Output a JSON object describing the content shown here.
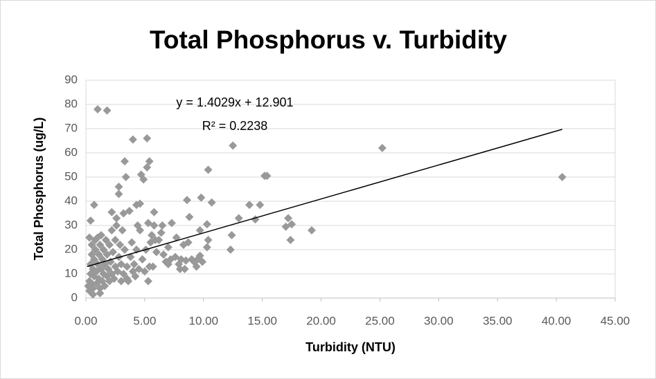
{
  "chart_data": {
    "type": "scatter",
    "title": "Total Phosphorus v. Turbidity",
    "x_label": "Turbidity (NTU)",
    "y_label": "Total Phosphorus (ug/L)",
    "color": "#999999",
    "xlim": [
      0,
      45
    ],
    "ylim": [
      0,
      90
    ],
    "xticks": [
      {
        "value": 0,
        "label": "0.00"
      },
      {
        "value": 5,
        "label": "5.00"
      },
      {
        "value": 10,
        "label": "10.00"
      },
      {
        "value": 15,
        "label": "15.00"
      },
      {
        "value": 20,
        "label": "20.00"
      },
      {
        "value": 25,
        "label": "25.00"
      },
      {
        "value": 30,
        "label": "30.00"
      },
      {
        "value": 35,
        "label": "35.00"
      },
      {
        "value": 40,
        "label": "40.00"
      },
      {
        "value": 45,
        "label": "45.00"
      }
    ],
    "yticks": [
      0,
      10,
      20,
      30,
      40,
      50,
      60,
      70,
      80,
      90
    ],
    "grid": true,
    "x": [
      1.0,
      1.8,
      4.0,
      5.2,
      3.3,
      5.4,
      5.2,
      3.4,
      4.7,
      4.9,
      10.4,
      12.5,
      25.2,
      40.5,
      15.2,
      15.4,
      9.8,
      10.7,
      8.6,
      13.9,
      14.8,
      14.4,
      13.0,
      17.2,
      17.0,
      17.5,
      17.4,
      19.2,
      12.4,
      12.3,
      10.3,
      10.4,
      10.3,
      9.7,
      0.7,
      0.4,
      2.8,
      2.8,
      4.3,
      4.6,
      3.7,
      5.8,
      3.2,
      2.2,
      2.6,
      5.3,
      6.5,
      7.3,
      8.8,
      9.7,
      9.9,
      9.4,
      8.5,
      8.0,
      8.3,
      7.7,
      7.0,
      6.8,
      5.9,
      5.5,
      5.3,
      3.5,
      0.2,
      0.3,
      0.3,
      0.4,
      0.4,
      0.5,
      0.5,
      0.5,
      0.3,
      0.6,
      0.6,
      0.7,
      0.7,
      0.8,
      0.8,
      0.9,
      0.9,
      1.0,
      1.0,
      1.1,
      1.1,
      1.2,
      1.2,
      1.3,
      1.3,
      1.4,
      1.4,
      1.5,
      1.5,
      1.6,
      1.6,
      1.7,
      1.8,
      1.8,
      1.9,
      2.0,
      2.0,
      2.1,
      2.2,
      2.2,
      2.3,
      2.4,
      2.5,
      2.5,
      2.7,
      2.8,
      2.9,
      3.0,
      3.0,
      3.1,
      3.2,
      3.3,
      3.5,
      3.6,
      3.8,
      3.9,
      4.0,
      4.1,
      4.2,
      4.3,
      4.5,
      4.6,
      4.8,
      5.0,
      5.1,
      5.4,
      5.6,
      5.7,
      6.0,
      6.2,
      6.4,
      6.6,
      7.0,
      7.2,
      7.6,
      7.9,
      8.1,
      8.4,
      8.7,
      9.0,
      9.2,
      9.5,
      1.2,
      0.6,
      2.6,
      4.4,
      5.8
    ],
    "values": [
      78,
      77.5,
      65.5,
      66,
      56.5,
      56.5,
      54,
      50,
      51,
      49,
      53,
      63,
      62,
      50,
      50.5,
      50.5,
      41.5,
      39.5,
      40.5,
      38.5,
      38.5,
      32.5,
      33,
      33,
      29.5,
      30.5,
      24,
      28,
      26,
      20,
      30.5,
      24,
      21,
      28,
      38.5,
      32,
      46,
      43,
      38.5,
      39,
      36,
      35.5,
      35,
      35.5,
      33,
      31,
      30,
      31,
      33.5,
      17.5,
      15,
      13,
      15.5,
      12,
      22,
      25,
      21,
      15,
      24,
      23,
      7,
      8,
      5,
      7,
      3,
      10,
      14,
      6,
      18,
      22,
      25,
      12,
      4,
      9,
      16,
      20,
      24,
      6,
      11,
      14,
      25,
      8,
      18,
      4,
      22,
      12,
      26,
      7,
      16,
      10,
      20,
      5,
      14,
      24,
      9,
      18,
      12,
      7,
      22,
      15,
      10,
      28,
      19,
      8,
      13,
      24,
      11,
      17,
      22,
      7,
      14,
      28,
      10,
      20,
      13,
      7,
      17,
      23,
      11,
      14,
      9,
      20,
      12,
      28,
      16,
      11,
      20,
      13,
      26,
      13,
      19,
      24,
      27,
      18,
      14,
      16,
      17,
      14,
      16,
      12,
      23,
      16,
      15,
      16,
      2,
      1.5,
      30,
      30,
      30
    ],
    "trendline": {
      "x": [
        0.1,
        40.5
      ],
      "y": [
        13.04,
        69.72
      ],
      "color": "#000000"
    },
    "annotations": [
      "y = 1.4029x + 12.901",
      "R² = 0.2238"
    ]
  }
}
